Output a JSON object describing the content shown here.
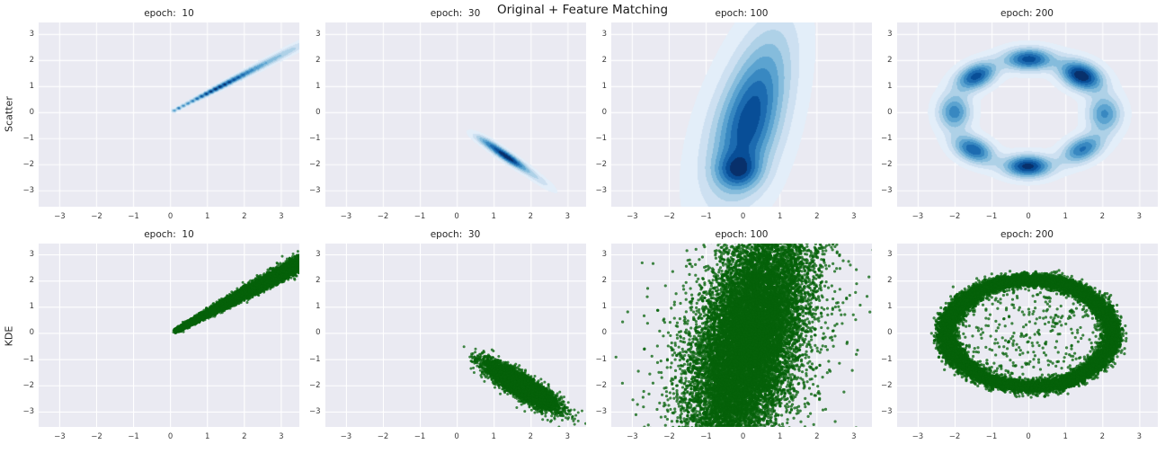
{
  "figure": {
    "suptitle": "Original + Feature Matching",
    "row_labels": [
      "Scatter",
      "KDE"
    ],
    "colors": {
      "axes_bg": "#eaeaf2",
      "grid": "#ffffff",
      "title_text": "#1a1a1a",
      "tick_text": "#3d3d3d",
      "kde_cmap": "Blues",
      "scatter_point": "#06620a"
    }
  },
  "chart_data": [
    {
      "row": "Scatter",
      "type": "kde2d",
      "title": "epoch:  10",
      "xlim": [
        -3.57,
        3.49
      ],
      "ylim": [
        -3.61,
        3.46
      ],
      "xticks": [
        -3,
        -2,
        -1,
        0,
        1,
        2,
        3
      ],
      "yticks": [
        -3,
        -2,
        -1,
        0,
        1,
        2,
        3
      ],
      "cmap": "Blues",
      "beads": {
        "from": [
          0.1,
          0.08
        ],
        "to": [
          3.7,
          2.72
        ],
        "n": 30,
        "sigPerp": [
          0.045,
          0.115
        ],
        "sigAlong": [
          0.045,
          0.08
        ],
        "envelope": [
          {
            "c": 0.28,
            "s": 0.19,
            "w": 1.0
          },
          {
            "c": 0.62,
            "s": 0.18,
            "w": 0.36
          },
          {
            "c": 0.88,
            "s": 0.12,
            "w": 0.14
          },
          {
            "c": 0.02,
            "s": 0.04,
            "w": 0.4
          }
        ]
      }
    },
    {
      "row": "Scatter",
      "type": "kde2d",
      "title": "epoch:  30",
      "xlim": [
        -3.57,
        3.49
      ],
      "ylim": [
        -3.61,
        3.46
      ],
      "xticks": [
        -3,
        -2,
        -1,
        0,
        1,
        2,
        3
      ],
      "yticks": [
        -3,
        -2,
        -1,
        0,
        1,
        2,
        3
      ],
      "cmap": "Blues",
      "components": [
        {
          "cx": 1.35,
          "cy": -1.7,
          "sx": 0.5,
          "sy": 0.105,
          "rot": -44,
          "w": 1.0
        },
        {
          "cx": 2.2,
          "cy": -2.55,
          "sx": 0.42,
          "sy": 0.1,
          "rot": -46,
          "w": 0.2
        },
        {
          "cx": 0.78,
          "cy": -1.12,
          "sx": 0.32,
          "sy": 0.1,
          "rot": -40,
          "w": 0.32
        }
      ]
    },
    {
      "row": "Scatter",
      "type": "kde2d",
      "title": "epoch: 100",
      "xlim": [
        -3.57,
        3.49
      ],
      "ylim": [
        -3.61,
        3.46
      ],
      "xticks": [
        -3,
        -2,
        -1,
        0,
        1,
        2,
        3
      ],
      "yticks": [
        -3,
        -2,
        -1,
        0,
        1,
        2,
        3
      ],
      "cmap": "Blues",
      "components": [
        {
          "cx": 0.4,
          "cy": 0.8,
          "sx": 0.55,
          "sy": 1.9,
          "rot": -11,
          "w": 0.95
        },
        {
          "cx": -0.12,
          "cy": -2.25,
          "sx": 0.4,
          "sy": 0.45,
          "rot": 0,
          "w": 0.98
        },
        {
          "cx": 0.05,
          "cy": -1.1,
          "sx": 0.6,
          "sy": 1.55,
          "rot": -8,
          "w": 0.8
        },
        {
          "cx": 0.0,
          "cy": -0.6,
          "sx": 0.78,
          "sy": 2.5,
          "rot": -13,
          "w": 0.42
        }
      ]
    },
    {
      "row": "Scatter",
      "type": "kde2d",
      "title": "epoch: 200",
      "xlim": [
        -3.57,
        3.49
      ],
      "ylim": [
        -3.61,
        3.46
      ],
      "xticks": [
        -3,
        -2,
        -1,
        0,
        1,
        2,
        3
      ],
      "yticks": [
        -3,
        -2,
        -1,
        0,
        1,
        2,
        3
      ],
      "cmap": "Blues",
      "components": [
        {
          "cx": 0.0,
          "cy": 2.05,
          "sx": 0.46,
          "sy": 0.3,
          "rot": 0,
          "w": 0.85
        },
        {
          "cx": 1.42,
          "cy": 1.42,
          "sx": 0.46,
          "sy": 0.33,
          "rot": 135,
          "w": 1.0
        },
        {
          "cx": 2.05,
          "cy": -0.05,
          "sx": 0.5,
          "sy": 0.32,
          "rot": 90,
          "w": 0.6
        },
        {
          "cx": 1.45,
          "cy": -1.4,
          "sx": 0.46,
          "sy": 0.3,
          "rot": 45,
          "w": 0.7
        },
        {
          "cx": -0.03,
          "cy": -2.06,
          "sx": 0.44,
          "sy": 0.3,
          "rot": 0,
          "w": 0.95
        },
        {
          "cx": -1.5,
          "cy": -1.42,
          "sx": 0.45,
          "sy": 0.3,
          "rot": 135,
          "w": 0.78
        },
        {
          "cx": -2.02,
          "cy": 0.02,
          "sx": 0.48,
          "sy": 0.31,
          "rot": 90,
          "w": 0.64
        },
        {
          "cx": -1.43,
          "cy": 1.4,
          "sx": 0.45,
          "sy": 0.3,
          "rot": 45,
          "w": 0.84
        }
      ]
    },
    {
      "row": "KDE",
      "type": "scatter2d",
      "title": "epoch:  10",
      "xlim": [
        -3.57,
        3.49
      ],
      "ylim": [
        -3.57,
        3.43
      ],
      "xticks": [
        -3,
        -2,
        -1,
        0,
        1,
        2,
        3
      ],
      "yticks": [
        -3,
        -2,
        -1,
        0,
        1,
        2,
        3
      ],
      "point_color": "#06620a",
      "alpha": 0.75,
      "radius": 1.5,
      "clusters": [
        {
          "kind": "band",
          "n": 8000,
          "from": [
            0.14,
            0.1
          ],
          "to": [
            3.68,
            2.8
          ],
          "sigPerp": [
            0.035,
            0.14
          ],
          "jitterAlong": 0.04
        }
      ]
    },
    {
      "row": "KDE",
      "type": "scatter2d",
      "title": "epoch:  30",
      "xlim": [
        -3.57,
        3.49
      ],
      "ylim": [
        -3.57,
        3.43
      ],
      "xticks": [
        -3,
        -2,
        -1,
        0,
        1,
        2,
        3
      ],
      "yticks": [
        -3,
        -2,
        -1,
        0,
        1,
        2,
        3
      ],
      "point_color": "#06620a",
      "alpha": 0.75,
      "radius": 1.5,
      "clusters": [
        {
          "kind": "gauss",
          "n": 7000,
          "cx": 1.73,
          "cy": -2.0,
          "sMaj": 0.58,
          "sMin": 0.16,
          "angle": -42.6
        },
        {
          "kind": "gauss",
          "n": 80,
          "cx": 2.3,
          "cy": -2.65,
          "sMaj": 0.38,
          "sMin": 0.24,
          "angle": -45
        }
      ]
    },
    {
      "row": "KDE",
      "type": "scatter2d",
      "title": "epoch: 100",
      "xlim": [
        -3.57,
        3.49
      ],
      "ylim": [
        -3.57,
        3.43
      ],
      "xticks": [
        -3,
        -2,
        -1,
        0,
        1,
        2,
        3
      ],
      "yticks": [
        -3,
        -2,
        -1,
        0,
        1,
        2,
        3
      ],
      "point_color": "#06620a",
      "alpha": 0.75,
      "radius": 1.6,
      "clusters": [
        {
          "kind": "shear",
          "n": 15000,
          "cx": 0.15,
          "cy": -0.3,
          "sx": 0.68,
          "sy": 2.35,
          "shear": 0.17
        },
        {
          "kind": "shear",
          "n": 900,
          "cx": 0.1,
          "cy": -0.2,
          "sx": 1.3,
          "sy": 2.3,
          "shear": 0.17
        }
      ]
    },
    {
      "row": "KDE",
      "type": "scatter2d",
      "title": "epoch: 200",
      "xlim": [
        -3.57,
        3.49
      ],
      "ylim": [
        -3.57,
        3.43
      ],
      "xticks": [
        -3,
        -2,
        -1,
        0,
        1,
        2,
        3
      ],
      "yticks": [
        -3,
        -2,
        -1,
        0,
        1,
        2,
        3
      ],
      "point_color": "#06620a",
      "alpha": 0.75,
      "radius": 1.6,
      "clusters": [
        {
          "kind": "ringmodes",
          "n": 12000,
          "modes": [
            [
              0,
              2.28
            ],
            [
              45,
              2.12
            ],
            [
              90,
              2.03
            ],
            [
              135,
              2.1
            ],
            [
              180,
              2.28
            ],
            [
              225,
              2.08
            ],
            [
              270,
              2.04
            ],
            [
              315,
              2.12
            ]
          ],
          "sigA": 20,
          "sigR": 0.12
        },
        {
          "kind": "disk",
          "n": 300,
          "R": 1.82
        },
        {
          "kind": "ringmodes",
          "n": 90,
          "modes": [
            [
              0,
              2.28
            ],
            [
              45,
              2.12
            ],
            [
              90,
              2.03
            ],
            [
              135,
              2.1
            ],
            [
              180,
              2.28
            ],
            [
              225,
              2.08
            ],
            [
              270,
              2.04
            ],
            [
              315,
              2.12
            ]
          ],
          "sigA": 30,
          "sigR": 0.25
        }
      ]
    }
  ]
}
